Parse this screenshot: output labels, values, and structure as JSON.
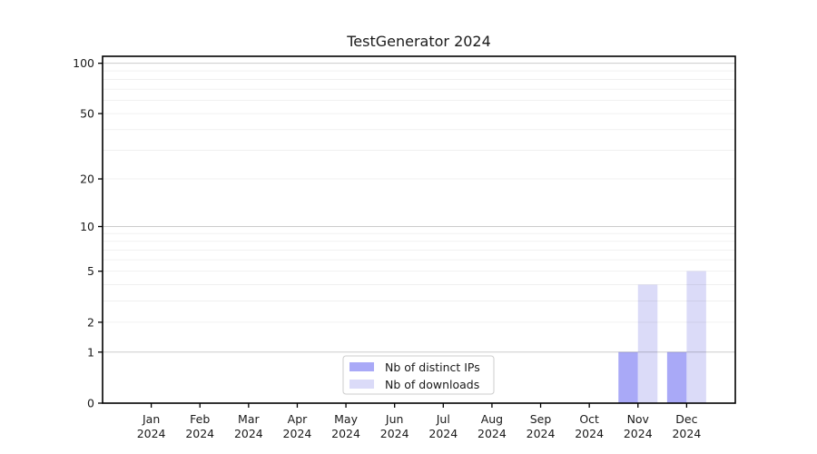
{
  "figure": {
    "title": "TestGenerator 2024"
  },
  "chart_data": {
    "type": "bar",
    "title": "TestGenerator 2024",
    "categories": [
      "Jan 2024",
      "Feb 2024",
      "Mar 2024",
      "Apr 2024",
      "May 2024",
      "Jun 2024",
      "Jul 2024",
      "Aug 2024",
      "Sep 2024",
      "Oct 2024",
      "Nov 2024",
      "Dec 2024"
    ],
    "series": [
      {
        "name": "Nb of distinct IPs",
        "color": "#a9a9f7",
        "values": [
          0,
          0,
          0,
          0,
          0,
          0,
          0,
          0,
          0,
          0,
          1,
          1
        ]
      },
      {
        "name": "Nb of downloads",
        "color": "#dbdbf8",
        "values": [
          0,
          0,
          0,
          0,
          0,
          0,
          0,
          0,
          0,
          0,
          4,
          5
        ]
      }
    ],
    "xlabel": "",
    "ylabel": "",
    "yscale": "log1p",
    "ylim": [
      0,
      110
    ],
    "yticks": [
      0,
      1,
      2,
      5,
      10,
      20,
      50,
      100
    ],
    "minor_gridlines": [
      2,
      3,
      4,
      5,
      6,
      7,
      8,
      9,
      20,
      30,
      40,
      50,
      60,
      70,
      80,
      90
    ],
    "major_gridlines": [
      1,
      10,
      100
    ],
    "grid": "on",
    "legend_position": "lower center"
  },
  "colors": {
    "background": "#ffffff",
    "axis": "#000000",
    "text": "#1a1a1a",
    "grid_minor": "rgba(0,0,0,0.06)",
    "grid_major": "rgba(0,0,0,0.20)",
    "legend_border": "#cccccc",
    "legend_background": "#ffffff"
  }
}
